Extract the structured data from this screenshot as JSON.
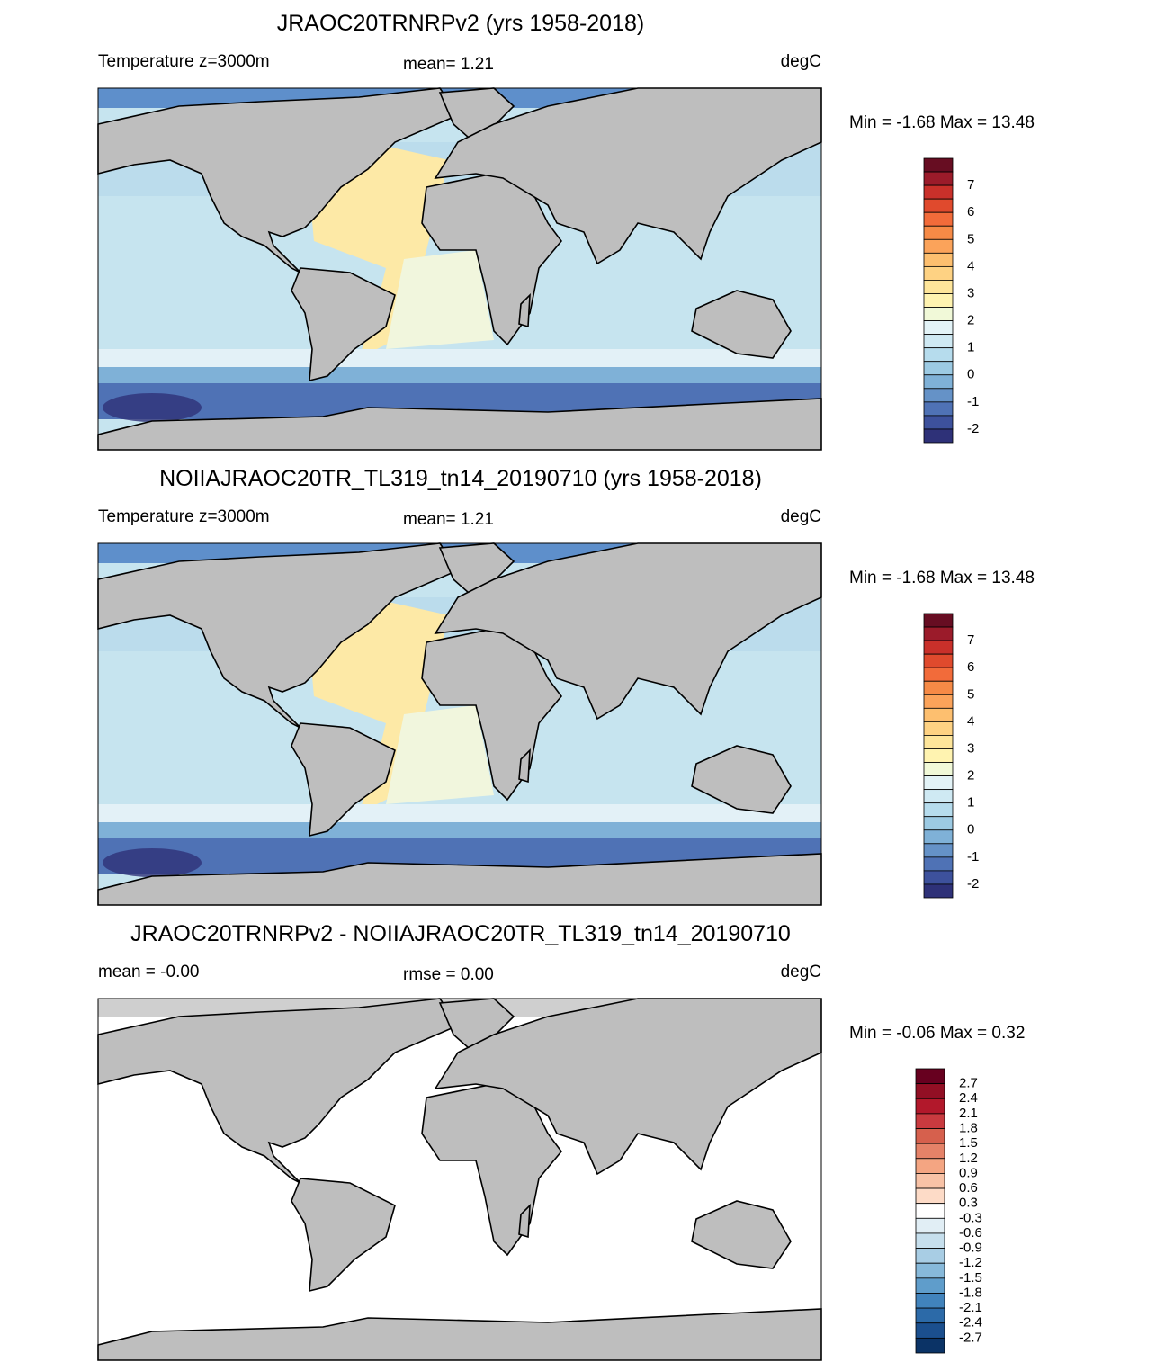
{
  "panels": [
    {
      "title": "JRAOC20TRNRPv2 (yrs 1958-2018)",
      "left_label": "Temperature z=3000m",
      "center_label": "mean=   1.21",
      "right_label": "degC",
      "range_label": "Min =  -1.68 Max =  13.48",
      "colorbar": {
        "labels": [
          "7",
          "6",
          "5",
          "4",
          "3",
          "2",
          "1",
          "0",
          "-1",
          "-2"
        ],
        "colors": [
          "#670d22",
          "#9b1b2a",
          "#c9302a",
          "#e04a2d",
          "#f26b3a",
          "#f68a46",
          "#fba35a",
          "#fdbf6f",
          "#fed283",
          "#fee59a",
          "#fff3b0",
          "#f1f9d8",
          "#e3f3f7",
          "#cfe9f3",
          "#b6dced",
          "#9ccae3",
          "#7fb1d7",
          "#6592c7",
          "#4f72b5",
          "#3d519c",
          "#2e3178"
        ]
      }
    },
    {
      "title": "NOIIAJRAOC20TR_TL319_tn14_20190710 (yrs 1958-2018)",
      "left_label": "Temperature z=3000m",
      "center_label": "mean=   1.21",
      "right_label": "degC",
      "range_label": "Min =  -1.68 Max =  13.48",
      "colorbar": {
        "labels": [
          "7",
          "6",
          "5",
          "4",
          "3",
          "2",
          "1",
          "0",
          "-1",
          "-2"
        ],
        "colors": [
          "#670d22",
          "#9b1b2a",
          "#c9302a",
          "#e04a2d",
          "#f26b3a",
          "#f68a46",
          "#fba35a",
          "#fdbf6f",
          "#fed283",
          "#fee59a",
          "#fff3b0",
          "#f1f9d8",
          "#e3f3f7",
          "#cfe9f3",
          "#b6dced",
          "#9ccae3",
          "#7fb1d7",
          "#6592c7",
          "#4f72b5",
          "#3d519c",
          "#2e3178"
        ]
      }
    },
    {
      "title": "JRAOC20TRNRPv2 - NOIIAJRAOC20TR_TL319_tn14_20190710",
      "left_label": "mean =  -0.00",
      "center_label": "rmse =   0.00",
      "right_label": "degC",
      "range_label": "Min =  -0.06 Max =   0.32",
      "colorbar": {
        "labels": [
          "2.7",
          "2.4",
          "2.1",
          "1.8",
          "1.5",
          "1.2",
          "0.9",
          "0.6",
          "0.3",
          "-0.3",
          "-0.6",
          "-0.9",
          "-1.2",
          "-1.5",
          "-1.8",
          "-2.1",
          "-2.4",
          "-2.7"
        ],
        "colors": [
          "#67001f",
          "#920f24",
          "#b2182b",
          "#c93a3f",
          "#d6604d",
          "#e58268",
          "#f4a582",
          "#f8c2a6",
          "#fddbc7",
          "#ffffff",
          "#e1eef5",
          "#c6dfed",
          "#a8cde4",
          "#87b9da",
          "#5f9dcb",
          "#4183bc",
          "#2c6aa8",
          "#1b4f8e",
          "#0b3366"
        ]
      }
    }
  ]
}
